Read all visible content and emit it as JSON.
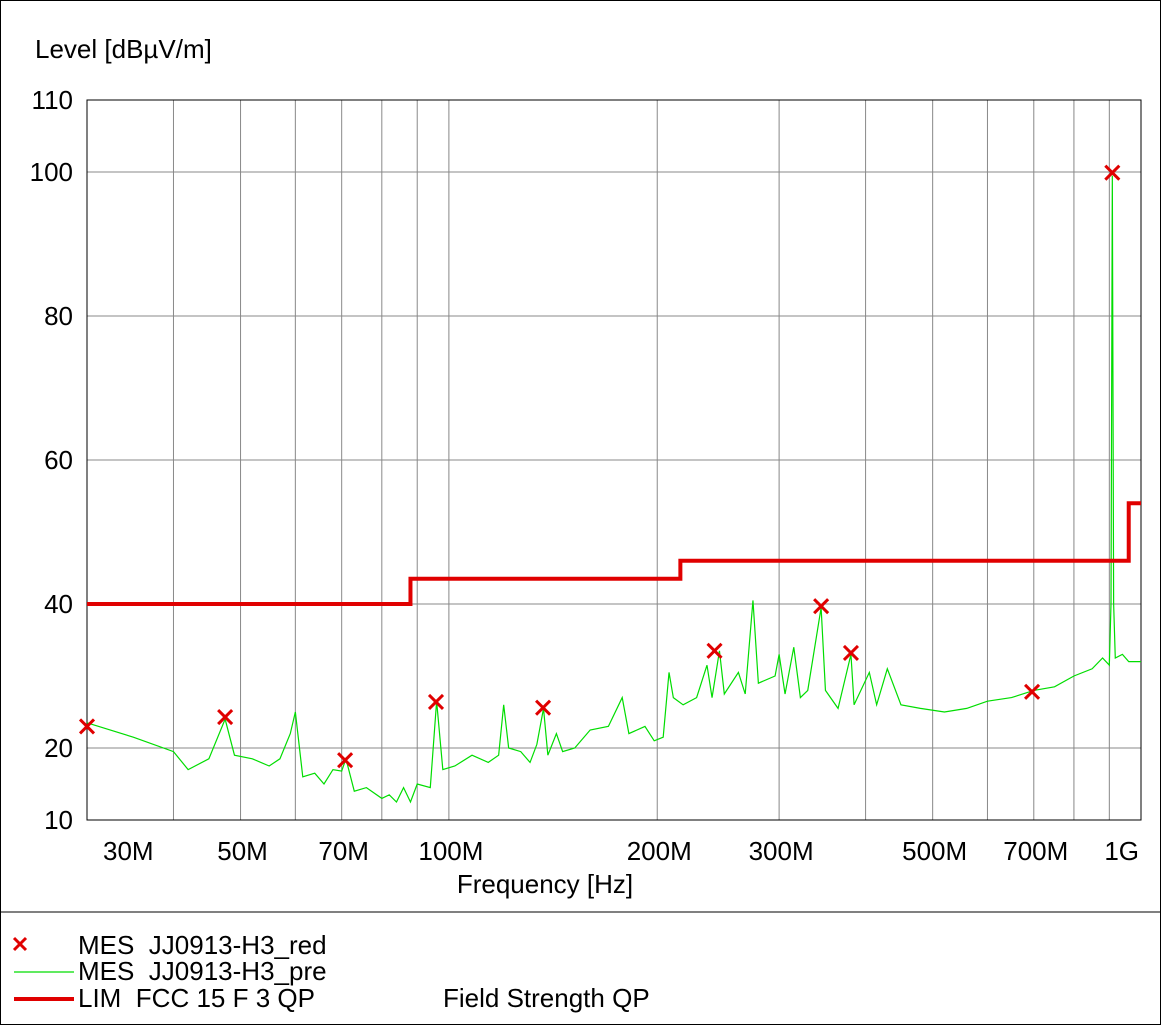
{
  "chart_data": {
    "type": "line",
    "ylabel": "Level [dBµV/m]",
    "xlabel": "Frequency [Hz]",
    "xscale": "log",
    "xlim": [
      30000000.0,
      1000000000.0
    ],
    "ylim": [
      10,
      110
    ],
    "xticks": [
      {
        "value": 30000000.0,
        "label": "30M"
      },
      {
        "value": 50000000.0,
        "label": "50M"
      },
      {
        "value": 70000000.0,
        "label": "70M"
      },
      {
        "value": 100000000.0,
        "label": "100M"
      },
      {
        "value": 200000000.0,
        "label": "200M"
      },
      {
        "value": 300000000.0,
        "label": "300M"
      },
      {
        "value": 500000000.0,
        "label": "500M"
      },
      {
        "value": 700000000.0,
        "label": "700M"
      },
      {
        "value": 1000000000.0,
        "label": "1G"
      }
    ],
    "xgrid_minor": [
      40000000.0,
      60000000.0,
      80000000.0,
      90000000.0,
      400000000.0,
      600000000.0,
      800000000.0,
      900000000.0
    ],
    "yticks": [
      10,
      20,
      40,
      60,
      80,
      100,
      110
    ],
    "grid": true,
    "legend": "bottom",
    "annotations": [
      "Field Strength QP"
    ],
    "series": [
      {
        "name": "MES  JJ0913-H3_red",
        "color": "#e00000",
        "marker": "x",
        "x": [
          30000000.0,
          47500000.0,
          70800000.0,
          95800000.0,
          136800000.0,
          242000000.0,
          345000000.0,
          381000000.0,
          696000000.0,
          909000000.0
        ],
        "values": [
          23,
          24.3,
          18.3,
          26.4,
          25.6,
          33.5,
          39.7,
          33.2,
          27.8,
          99.9
        ]
      },
      {
        "name": "MES  JJ0913-H3_pre",
        "color": "#00dd00",
        "marker": "none",
        "x": [
          30000000.0,
          35000000.0,
          40000000.0,
          42000000.0,
          45000000.0,
          47500000.0,
          49000000.0,
          52000000.0,
          55000000.0,
          57000000.0,
          59000000.0,
          60000000.0,
          61500000.0,
          64000000.0,
          66000000.0,
          68000000.0,
          70000000.0,
          71000000.0,
          73000000.0,
          76000000.0,
          80000000.0,
          82000000.0,
          84000000.0,
          86000000.0,
          88000000.0,
          90000000.0,
          94000000.0,
          96000000.0,
          98000000.0,
          102000000.0,
          108000000.0,
          114000000.0,
          118000000.0,
          120000000.0,
          122000000.0,
          127000000.0,
          131000000.0,
          134000000.0,
          137000000.0,
          139000000.0,
          143000000.0,
          146000000.0,
          152000000.0,
          160000000.0,
          170000000.0,
          178000000.0,
          182000000.0,
          192000000.0,
          198000000.0,
          204000000.0,
          208000000.0,
          211000000.0,
          218000000.0,
          228000000.0,
          236000000.0,
          240000000.0,
          246000000.0,
          250000000.0,
          262000000.0,
          268000000.0,
          275000000.0,
          280000000.0,
          296000000.0,
          300000000.0,
          306000000.0,
          315000000.0,
          322000000.0,
          330000000.0,
          345000000.0,
          350000000.0,
          365000000.0,
          381000000.0,
          385000000.0,
          405000000.0,
          415000000.0,
          430000000.0,
          450000000.0,
          480000000.0,
          520000000.0,
          560000000.0,
          600000000.0,
          650000000.0,
          700000000.0,
          750000000.0,
          800000000.0,
          850000000.0,
          880000000.0,
          900000000.0,
          905000000.0,
          909000000.0,
          913000000.0,
          918000000.0,
          940000000.0,
          960000000.0,
          1000000000.0
        ],
        "values": [
          23.5,
          21.5,
          19.5,
          17,
          18.5,
          24,
          19,
          18.5,
          17.5,
          18.5,
          22,
          25,
          16,
          16.5,
          15,
          17,
          16.8,
          18.5,
          14,
          14.5,
          13,
          13.5,
          12.5,
          14.5,
          12.5,
          15,
          14.5,
          26.5,
          17,
          17.5,
          19,
          18,
          19,
          26,
          20,
          19.5,
          18,
          20.5,
          25.5,
          19,
          22,
          19.5,
          20,
          22.5,
          23,
          27,
          22,
          23,
          21,
          21.5,
          30.5,
          27,
          26,
          27,
          31.5,
          27,
          33.5,
          27.5,
          30.5,
          27.5,
          40.5,
          29,
          30,
          33,
          27.5,
          34,
          27,
          28,
          39.5,
          28,
          25.5,
          33,
          26,
          30.5,
          26,
          31,
          26,
          25.5,
          25,
          25.5,
          26.5,
          27,
          28,
          28.5,
          30,
          31,
          32.5,
          31.5,
          40,
          99.5,
          40,
          32.5,
          33,
          32,
          32
        ]
      },
      {
        "name": "LIM  FCC 15 F 3 QP",
        "color": "#e00000",
        "marker": "none",
        "width": 4,
        "x": [
          30000000.0,
          88000000.0,
          88000000.0,
          216000000.0,
          216000000.0,
          960000000.0,
          960000000.0,
          1000000000.0
        ],
        "values": [
          40,
          40,
          43.5,
          43.5,
          46,
          46,
          54,
          54
        ]
      }
    ]
  }
}
